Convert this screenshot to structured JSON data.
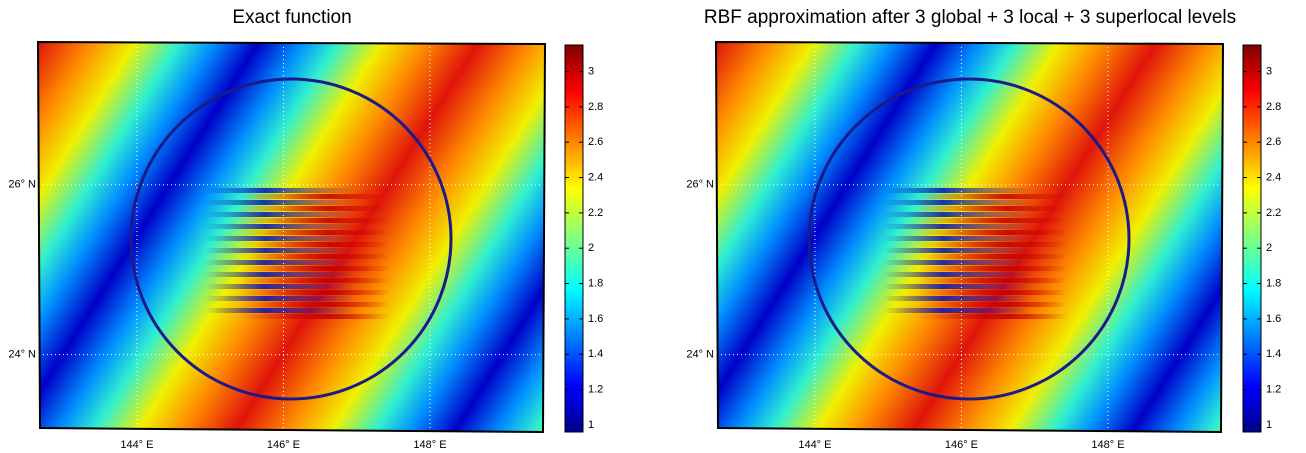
{
  "chart_data": [
    {
      "type": "heatmap",
      "title": "Exact function",
      "xlim": [
        142.65,
        149.57
      ],
      "ylim": [
        23.09,
        27.68
      ],
      "xticks": [
        {
          "value": 144,
          "label": "144° E"
        },
        {
          "value": 146,
          "label": "146° E"
        },
        {
          "value": 148,
          "label": "148° E"
        }
      ],
      "yticks": [
        {
          "value": 24,
          "label": "24° N"
        },
        {
          "value": 26,
          "label": "26° N"
        }
      ],
      "grid": true,
      "colorbar": {
        "lim": [
          0.96,
          3.15
        ],
        "ticks": [
          1,
          1.2,
          1.4,
          1.6,
          1.8,
          2,
          2.2,
          2.4,
          2.6,
          2.8,
          3
        ]
      }
    },
    {
      "type": "heatmap",
      "title": "RBF approximation after 3 global + 3 local + 3 superlocal levels",
      "xlim": [
        142.65,
        149.57
      ],
      "ylim": [
        23.09,
        27.68
      ],
      "xticks": [
        {
          "value": 144,
          "label": "144° E"
        },
        {
          "value": 146,
          "label": "146° E"
        },
        {
          "value": 148,
          "label": "148° E"
        }
      ],
      "yticks": [
        {
          "value": 24,
          "label": "24° N"
        },
        {
          "value": 26,
          "label": "26° N"
        }
      ],
      "grid": true,
      "colorbar": {
        "lim": [
          0.96,
          3.15
        ],
        "ticks": [
          1,
          1.2,
          1.4,
          1.6,
          1.8,
          2,
          2.2,
          2.4,
          2.6,
          2.8,
          3
        ]
      }
    }
  ]
}
